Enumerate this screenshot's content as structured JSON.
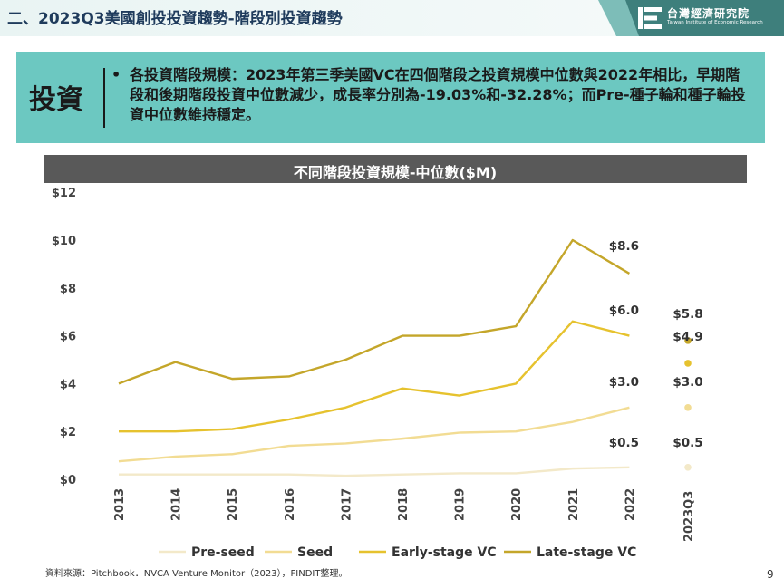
{
  "header": {
    "title": "二、2023Q3美國創投投資趨勢-階段別投資趨勢",
    "logo_cn": "台灣經濟研究院",
    "logo_en": "Taiwan Institute of Economic Research"
  },
  "summary": {
    "key_label": "投資",
    "bullet": "•",
    "text": "各投資階段規模：2023年第三季美國VC在四個階段之投資規模中位數與2022年相比，早期階段和後期階段投資中位數減少，成長率分別為-19.03%和-32.28%；而Pre-種子輪和種子輪投資中位數維持穩定。"
  },
  "chart_data": {
    "type": "line",
    "title": "不同階段投資規模-中位數($M)",
    "categories": [
      "2013",
      "2014",
      "2015",
      "2016",
      "2017",
      "2018",
      "2019",
      "2020",
      "2021",
      "2022"
    ],
    "q3_label": "2023Q3",
    "y_ticks": [
      "$0",
      "$2",
      "$4",
      "$6",
      "$8",
      "$10",
      "$12"
    ],
    "ylim": [
      0,
      12
    ],
    "series": [
      {
        "name": "Pre-seed",
        "color": "#f3e9c9",
        "values": [
          0.2,
          0.2,
          0.2,
          0.2,
          0.15,
          0.2,
          0.25,
          0.25,
          0.45,
          0.5
        ],
        "q3": 0.5,
        "last_label": "$0.5",
        "q3_label": "$0.5"
      },
      {
        "name": "Seed",
        "color": "#f2dc93",
        "values": [
          0.75,
          0.95,
          1.05,
          1.4,
          1.5,
          1.7,
          1.95,
          2.0,
          2.4,
          3.0
        ],
        "q3": 3.0,
        "last_label": "$3.0",
        "q3_label": "$3.0"
      },
      {
        "name": "Early-stage VC",
        "color": "#e6c22e",
        "values": [
          2.0,
          2.0,
          2.1,
          2.5,
          3.0,
          3.8,
          3.5,
          4.0,
          6.6,
          6.0
        ],
        "q3": 4.85,
        "last_label": "$6.0",
        "q3_label": "$4.9"
      },
      {
        "name": "Late-stage VC",
        "color": "#c4a62a",
        "values": [
          4.0,
          4.9,
          4.2,
          4.3,
          5.0,
          6.0,
          6.0,
          6.4,
          10.0,
          8.6
        ],
        "q3": 5.8,
        "last_label": "$8.6",
        "q3_label": "$5.8"
      }
    ]
  },
  "footer": {
    "source": "資料來源：Pitchbook．NVCA Venture Monitor（2023），FINDIT整理。",
    "page": "9"
  }
}
